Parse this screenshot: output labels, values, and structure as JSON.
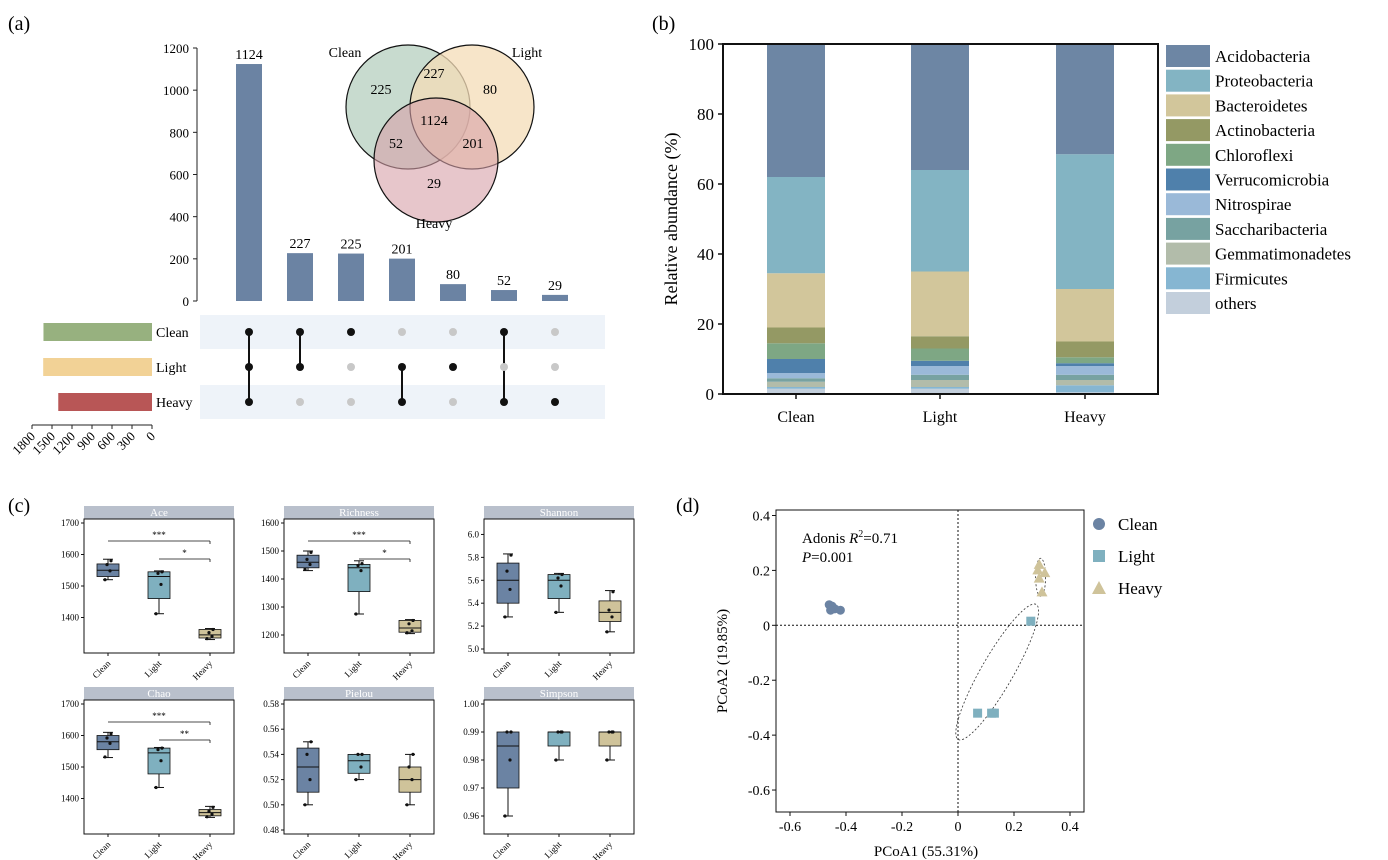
{
  "panel_labels": {
    "a": "(a)",
    "b": "(b)",
    "c": "(c)",
    "d": "(d)"
  },
  "colors": {
    "clean": "#6b83a3",
    "light": "#7fb0bf",
    "heavy": "#cfc39a",
    "upset_bar": "#6b83a3",
    "set_clean": "#97b17f",
    "set_light": "#f2d296",
    "set_heavy": "#b85656",
    "venn_clean": "#b6cfbf",
    "venn_light": "#f4dcb7",
    "venn_heavy": "#d7a0a9"
  },
  "chart_data": [
    {
      "id": "a_upset",
      "type": "bar",
      "ylim": [
        0,
        1200
      ],
      "yticks": [
        "0",
        "200",
        "400",
        "600",
        "800",
        "1000",
        "1200"
      ],
      "values": [
        1124,
        227,
        225,
        201,
        80,
        52,
        29
      ],
      "value_labels": [
        "1124",
        "227",
        "225",
        "201",
        "80",
        "52",
        "29"
      ],
      "sets": [
        "Clean",
        "Light",
        "Heavy"
      ],
      "membership": [
        [
          1,
          1,
          1
        ],
        [
          1,
          1,
          0
        ],
        [
          1,
          0,
          0
        ],
        [
          0,
          1,
          1
        ],
        [
          0,
          1,
          0
        ],
        [
          1,
          0,
          1
        ],
        [
          0,
          0,
          1
        ]
      ],
      "set_size_ticks": [
        "1800",
        "1500",
        "1200",
        "900",
        "600",
        "300",
        "0"
      ],
      "set_sizes": [
        1628,
        1632,
        1406
      ],
      "venn": {
        "labels": {
          "clean": "Clean",
          "light": "Light",
          "heavy": "Heavy"
        },
        "regions": {
          "clean_only": "225",
          "light_only": "80",
          "heavy_only": "29",
          "clean_light": "227",
          "clean_heavy": "52",
          "light_heavy": "201",
          "all": "1124"
        }
      }
    },
    {
      "id": "b_stacked",
      "type": "bar",
      "ylabel": "Relative abundance (%)",
      "ylim": [
        0,
        100
      ],
      "yticks": [
        "0",
        "20",
        "40",
        "60",
        "80",
        "100"
      ],
      "categories": [
        "Clean",
        "Light",
        "Heavy"
      ],
      "series": [
        {
          "name": "others",
          "color": "#c3cfdc",
          "values": [
            1.5,
            1.5,
            0.5
          ]
        },
        {
          "name": "Firmicutes",
          "color": "#86b6d2",
          "values": [
            0.5,
            0.5,
            2.0
          ]
        },
        {
          "name": "Gemmatimonadetes",
          "color": "#b2bcaa",
          "values": [
            1.5,
            2.0,
            1.5
          ]
        },
        {
          "name": "Saccharibacteria",
          "color": "#77a2a1",
          "values": [
            1.0,
            1.5,
            1.5
          ]
        },
        {
          "name": "Nitrospirae",
          "color": "#9ab9d8",
          "values": [
            1.5,
            2.5,
            2.5
          ]
        },
        {
          "name": "Verrucomicrobia",
          "color": "#4f80ab",
          "values": [
            4.0,
            1.5,
            0.8
          ]
        },
        {
          "name": "Chloroflexi",
          "color": "#7ea784",
          "values": [
            4.5,
            3.5,
            1.7
          ]
        },
        {
          "name": "Actinobacteria",
          "color": "#949964",
          "values": [
            4.5,
            3.5,
            4.5
          ]
        },
        {
          "name": "Bacteroidetes",
          "color": "#d2c69b",
          "values": [
            15.5,
            18.5,
            15.0
          ]
        },
        {
          "name": "Proteobacteria",
          "color": "#83b4c3",
          "values": [
            27.5,
            29.0,
            38.5
          ]
        },
        {
          "name": "Acidobacteria",
          "color": "#6d86a4",
          "values": [
            38.0,
            36.0,
            31.5
          ]
        }
      ]
    },
    {
      "id": "c_boxplots",
      "type": "box",
      "categories": [
        "Clean",
        "Light",
        "Heavy"
      ],
      "panels": [
        {
          "title": "Ace",
          "ylim": [
            1300,
            1700
          ],
          "yticks": [
            "1400",
            "1500",
            "1600",
            "1700"
          ],
          "boxes": [
            {
              "min": 1520,
              "q1": 1530,
              "med": 1550,
              "q3": 1570,
              "max": 1585,
              "pts": [
                1520,
                1548,
                1568,
                1580
              ]
            },
            {
              "min": 1412,
              "q1": 1460,
              "med": 1530,
              "q3": 1545,
              "max": 1548,
              "pts": [
                1412,
                1505,
                1540,
                1545
              ]
            },
            {
              "min": 1330,
              "q1": 1335,
              "med": 1345,
              "q3": 1362,
              "max": 1365,
              "pts": [
                1333,
                1340,
                1352,
                1362
              ]
            }
          ],
          "sig": [
            {
              "from": 0,
              "to": 2,
              "label": "***"
            },
            {
              "from": 1,
              "to": 2,
              "label": "*"
            }
          ]
        },
        {
          "title": "Richness",
          "ylim": [
            1150,
            1600
          ],
          "yticks": [
            "1200",
            "1300",
            "1400",
            "1500",
            "1600"
          ],
          "boxes": [
            {
              "min": 1430,
              "q1": 1440,
              "med": 1460,
              "q3": 1485,
              "max": 1500,
              "pts": [
                1435,
                1452,
                1470,
                1495
              ]
            },
            {
              "min": 1275,
              "q1": 1355,
              "med": 1440,
              "q3": 1452,
              "max": 1465,
              "pts": [
                1275,
                1430,
                1448,
                1455
              ]
            },
            {
              "min": 1205,
              "q1": 1210,
              "med": 1225,
              "q3": 1252,
              "max": 1255,
              "pts": [
                1208,
                1215,
                1240,
                1252
              ]
            }
          ],
          "sig": [
            {
              "from": 0,
              "to": 2,
              "label": "***"
            },
            {
              "from": 1,
              "to": 2,
              "label": "*"
            }
          ]
        },
        {
          "title": "Shannon",
          "ylim": [
            5.0,
            6.1
          ],
          "yticks": [
            "5.0",
            "5.2",
            "5.4",
            "5.6",
            "5.8",
            "6.0"
          ],
          "boxes": [
            {
              "min": 5.28,
              "q1": 5.4,
              "med": 5.6,
              "q3": 5.75,
              "max": 5.83,
              "pts": [
                5.28,
                5.52,
                5.68,
                5.82
              ]
            },
            {
              "min": 5.32,
              "q1": 5.44,
              "med": 5.6,
              "q3": 5.65,
              "max": 5.66,
              "pts": [
                5.32,
                5.55,
                5.62,
                5.65
              ]
            },
            {
              "min": 5.15,
              "q1": 5.24,
              "med": 5.32,
              "q3": 5.42,
              "max": 5.51,
              "pts": [
                5.15,
                5.28,
                5.34,
                5.5
              ]
            }
          ],
          "sig": []
        },
        {
          "title": "Chao",
          "ylim": [
            1300,
            1700
          ],
          "yticks": [
            "1400",
            "1500",
            "1600",
            "1700"
          ],
          "boxes": [
            {
              "min": 1530,
              "q1": 1555,
              "med": 1580,
              "q3": 1600,
              "max": 1610,
              "pts": [
                1532,
                1575,
                1592,
                1605
              ]
            },
            {
              "min": 1435,
              "q1": 1478,
              "med": 1545,
              "q3": 1560,
              "max": 1562,
              "pts": [
                1435,
                1520,
                1555,
                1560
              ]
            },
            {
              "min": 1340,
              "q1": 1345,
              "med": 1355,
              "q3": 1365,
              "max": 1375,
              "pts": [
                1342,
                1350,
                1360,
                1372
              ]
            }
          ],
          "sig": [
            {
              "from": 0,
              "to": 2,
              "label": "***"
            },
            {
              "from": 1,
              "to": 2,
              "label": "**"
            }
          ]
        },
        {
          "title": "Pielou",
          "ylim": [
            0.48,
            0.58
          ],
          "yticks": [
            "0.48",
            "0.50",
            "0.52",
            "0.54",
            "0.56",
            "0.58"
          ],
          "boxes": [
            {
              "min": 0.5,
              "q1": 0.51,
              "med": 0.53,
              "q3": 0.545,
              "max": 0.55,
              "pts": [
                0.5,
                0.52,
                0.54,
                0.55
              ]
            },
            {
              "min": 0.52,
              "q1": 0.525,
              "med": 0.535,
              "q3": 0.54,
              "max": 0.54,
              "pts": [
                0.52,
                0.53,
                0.54,
                0.54
              ]
            },
            {
              "min": 0.5,
              "q1": 0.51,
              "med": 0.52,
              "q3": 0.53,
              "max": 0.54,
              "pts": [
                0.5,
                0.52,
                0.53,
                0.54
              ]
            }
          ],
          "sig": []
        },
        {
          "title": "Simpson",
          "ylim": [
            0.955,
            1.0
          ],
          "yticks": [
            "0.96",
            "0.97",
            "0.98",
            "0.99",
            "1.00"
          ],
          "boxes": [
            {
              "min": 0.96,
              "q1": 0.97,
              "med": 0.985,
              "q3": 0.99,
              "max": 0.99,
              "pts": [
                0.96,
                0.98,
                0.99,
                0.99
              ]
            },
            {
              "min": 0.98,
              "q1": 0.985,
              "med": 0.99,
              "q3": 0.99,
              "max": 0.99,
              "pts": [
                0.98,
                0.99,
                0.99,
                0.99
              ]
            },
            {
              "min": 0.98,
              "q1": 0.985,
              "med": 0.99,
              "q3": 0.99,
              "max": 0.99,
              "pts": [
                0.98,
                0.99,
                0.99,
                0.99
              ]
            }
          ],
          "sig": []
        }
      ]
    },
    {
      "id": "d_pcoa",
      "type": "scatter",
      "xlabel": "PCoA1 (55.31%)",
      "ylabel": "PCoA2 (19.85%)",
      "xlim": [
        -0.65,
        0.45
      ],
      "ylim": [
        -0.68,
        0.42
      ],
      "xticks": [
        "-0.6",
        "-0.4",
        "-0.2",
        "0",
        "0.2",
        "0.4"
      ],
      "yticks": [
        "-0.6",
        "-0.4",
        "-0.2",
        "0",
        "0.2",
        "0.4"
      ],
      "annotation": {
        "line1_prefix": "Adonis ",
        "line1_var": "R",
        "line1_sup": "2",
        "line1_suffix": "=0.71",
        "line2_var": "P",
        "line2_suffix": "=0.001"
      },
      "series": [
        {
          "name": "Clean",
          "marker": "circle",
          "points": [
            [
              -0.46,
              0.075
            ],
            [
              -0.45,
              0.07
            ],
            [
              -0.44,
              0.06
            ],
            [
              -0.42,
              0.055
            ],
            [
              -0.455,
              0.055
            ]
          ]
        },
        {
          "name": "Light",
          "marker": "square",
          "points": [
            [
              0.26,
              0.015
            ],
            [
              0.07,
              -0.32
            ],
            [
              0.12,
              -0.32
            ],
            [
              0.13,
              -0.32
            ]
          ]
        },
        {
          "name": "Heavy",
          "marker": "triangle",
          "points": [
            [
              0.29,
              0.22
            ],
            [
              0.31,
              0.19
            ],
            [
              0.29,
              0.17
            ],
            [
              0.3,
              0.12
            ],
            [
              0.285,
              0.2
            ]
          ]
        }
      ]
    }
  ]
}
